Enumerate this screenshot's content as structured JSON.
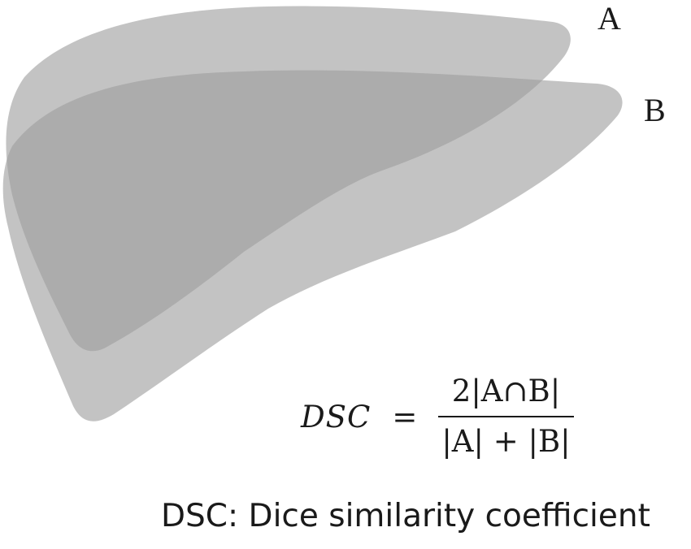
{
  "labels": {
    "set_a": "A",
    "set_b": "B"
  },
  "formula": {
    "lhs": "DSC",
    "equals": "=",
    "numerator": "2|A∩B|",
    "denominator": "|A| + |B|"
  },
  "caption": "DSC: Dice similarity coefficient",
  "colors": {
    "shape_fill": "#9e9e9e",
    "shape_opacity": "0.62",
    "background": "#ffffff"
  }
}
